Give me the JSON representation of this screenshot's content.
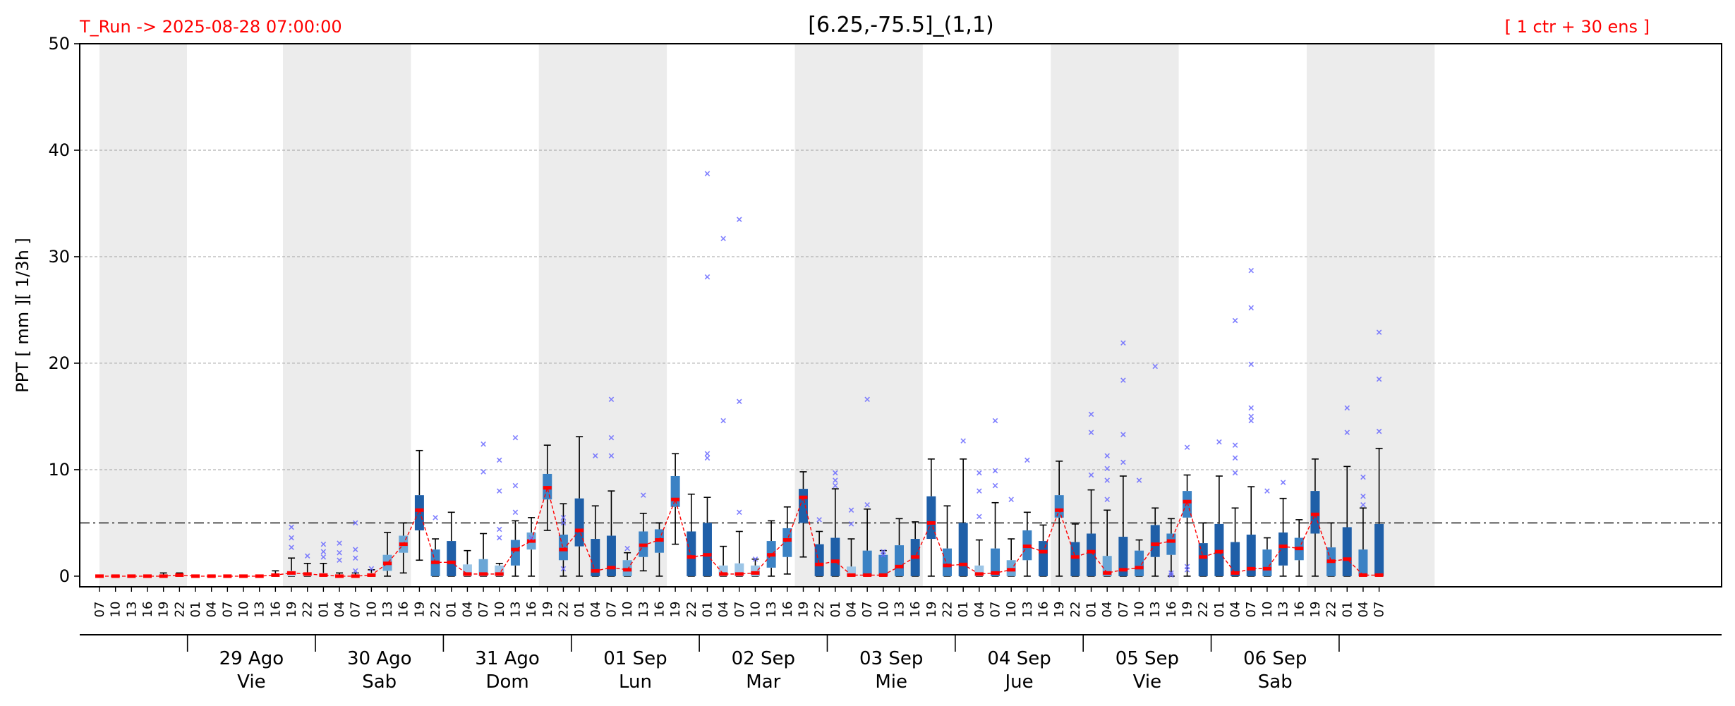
{
  "header": {
    "run_label": "T_Run -> 2025-08-28  07:00:00",
    "title": "[6.25,-75.5]_(1,1)",
    "members_label": "[ 1 ctr + 30 ens ]"
  },
  "colors": {
    "header_red": "#ff0000",
    "night_band": "#ececec",
    "median_red": "#ff0000",
    "outlier_blue": "#6a6aff",
    "whisker": "#000000",
    "threshold_line": "#555555"
  },
  "chart_data": {
    "type": "box",
    "ylabel": "PPT  [ mm ][ 1/3h ]",
    "ylim": [
      -1,
      50
    ],
    "yticks": [
      0,
      10,
      20,
      30,
      40,
      50
    ],
    "threshold": 5,
    "hours": [
      "07",
      "10",
      "13",
      "16",
      "19",
      "22",
      "01",
      "04",
      "07",
      "10",
      "13",
      "16",
      "19",
      "22",
      "01",
      "04",
      "07",
      "10",
      "13",
      "16",
      "19",
      "22",
      "01",
      "04",
      "07",
      "10",
      "13",
      "16",
      "19",
      "22",
      "01",
      "04",
      "07",
      "10",
      "13",
      "16",
      "19",
      "22",
      "01",
      "04",
      "07",
      "10",
      "13",
      "16",
      "19",
      "22",
      "01",
      "04",
      "07",
      "10",
      "13",
      "16",
      "19",
      "22",
      "01",
      "04",
      "07",
      "10",
      "13",
      "16",
      "19",
      "22",
      "01",
      "04",
      "07",
      "10",
      "13",
      "16",
      "19",
      "22",
      "01",
      "04",
      "07",
      "10",
      "13",
      "16",
      "19",
      "22",
      "01",
      "04",
      "07"
    ],
    "days": [
      {
        "date": "29 Ago",
        "weekday": "Vie"
      },
      {
        "date": "30 Ago",
        "weekday": "Sab"
      },
      {
        "date": "31 Ago",
        "weekday": "Dom"
      },
      {
        "date": "01 Sep",
        "weekday": "Lun"
      },
      {
        "date": "02 Sep",
        "weekday": "Mar"
      },
      {
        "date": "03 Sep",
        "weekday": "Mie"
      },
      {
        "date": "04 Sep",
        "weekday": "Jue"
      },
      {
        "date": "05 Sep",
        "weekday": "Vie"
      },
      {
        "date": "06 Sep",
        "weekday": "Sab"
      }
    ],
    "median": [
      0,
      0,
      0,
      0,
      0,
      0.1,
      0,
      0,
      0,
      0,
      0,
      0.1,
      0.3,
      0.2,
      0.1,
      0,
      0,
      0.1,
      1.2,
      3.0,
      6.2,
      1.3,
      1.3,
      0.2,
      0.2,
      0.2,
      2.5,
      3.3,
      8.3,
      2.5,
      4.3,
      0.5,
      0.8,
      0.6,
      2.9,
      3.4,
      7.2,
      1.8,
      2.0,
      0.2,
      0.2,
      0.3,
      2.0,
      3.4,
      7.4,
      1.1,
      1.4,
      0.1,
      0.1,
      0.1,
      0.9,
      1.8,
      5.0,
      1.0,
      1.1,
      0.2,
      0.3,
      0.6,
      2.8,
      2.3,
      6.2,
      1.8,
      2.3,
      0.3,
      0.6,
      0.8,
      3.0,
      3.3,
      7.0,
      1.8,
      2.3,
      0.3,
      0.7,
      0.7,
      2.8,
      2.6,
      5.8,
      1.4,
      1.6,
      0.1,
      0.1
    ],
    "q1": [
      0,
      0,
      0,
      0,
      0,
      0,
      0,
      0,
      0,
      0,
      0,
      0,
      0,
      0,
      0,
      0,
      0,
      0,
      0.5,
      2.2,
      4.3,
      0,
      0,
      0,
      0,
      0,
      1.0,
      2.5,
      7.2,
      1.5,
      2.8,
      0,
      0,
      0,
      1.8,
      2.2,
      6.5,
      0,
      0,
      0,
      0,
      0,
      0.8,
      1.8,
      5.0,
      0,
      0,
      0,
      0,
      0,
      0,
      0,
      3.5,
      0,
      0,
      0,
      0,
      0,
      1.5,
      0,
      5.5,
      0,
      0,
      0,
      0,
      0,
      1.8,
      2.0,
      5.5,
      0,
      0,
      0,
      0,
      0,
      1.0,
      1.5,
      4.0,
      0,
      0,
      0,
      0
    ],
    "q3": [
      0,
      0,
      0,
      0,
      0.1,
      0.1,
      0,
      0,
      0,
      0,
      0,
      0.2,
      0.5,
      0.3,
      0.3,
      0.1,
      0.1,
      0.3,
      2.0,
      3.8,
      7.6,
      2.5,
      3.3,
      1.1,
      1.6,
      1.0,
      3.4,
      4.1,
      9.6,
      3.9,
      7.3,
      3.5,
      3.8,
      1.5,
      4.2,
      4.4,
      9.4,
      4.2,
      5.0,
      1.0,
      1.2,
      1.0,
      3.3,
      4.5,
      8.2,
      3.0,
      3.6,
      0.9,
      2.4,
      2.0,
      2.9,
      3.5,
      7.5,
      2.6,
      5.0,
      1.0,
      2.6,
      1.5,
      4.3,
      3.3,
      7.6,
      3.2,
      4.0,
      1.9,
      3.7,
      2.4,
      4.8,
      4.0,
      8.0,
      3.1,
      4.9,
      3.2,
      3.9,
      2.5,
      4.1,
      3.6,
      8.0,
      2.7,
      4.6,
      2.5,
      4.9
    ],
    "whisker_low": [
      0,
      0,
      0,
      0,
      0,
      0,
      0,
      0,
      0,
      0,
      0,
      0,
      0,
      0,
      0,
      0,
      0,
      0,
      0,
      0.3,
      1.5,
      0,
      0,
      0,
      0,
      0,
      0,
      0,
      4.3,
      0,
      0,
      0,
      0,
      0,
      0.5,
      0,
      3.0,
      0,
      0,
      0,
      0,
      0,
      0,
      0.2,
      1.8,
      0,
      0,
      0,
      0,
      0,
      0,
      0,
      0,
      0,
      0,
      0,
      0,
      0,
      0,
      0,
      0,
      0,
      0,
      0,
      0,
      0,
      0,
      0,
      0,
      0,
      0,
      0,
      0,
      0,
      0,
      0,
      0,
      0,
      0,
      0,
      0
    ],
    "whisker_high": [
      0,
      0,
      0,
      0,
      0.3,
      0.3,
      0,
      0,
      0,
      0,
      0,
      0.5,
      1.7,
      1.2,
      1.2,
      0.3,
      0.3,
      0.6,
      4.1,
      5.0,
      11.8,
      3.5,
      6.0,
      2.4,
      4.0,
      1.2,
      5.2,
      5.5,
      12.3,
      6.8,
      13.1,
      6.6,
      8.0,
      2.2,
      5.9,
      5.0,
      11.5,
      7.7,
      7.4,
      2.8,
      4.2,
      1.6,
      5.2,
      6.5,
      9.8,
      4.2,
      8.2,
      3.5,
      6.3,
      2.4,
      5.4,
      5.1,
      11.0,
      6.6,
      11.0,
      3.4,
      6.9,
      3.5,
      6.0,
      4.8,
      10.8,
      4.9,
      8.1,
      6.2,
      9.4,
      3.4,
      6.4,
      5.4,
      9.5,
      5.0,
      9.4,
      6.4,
      8.4,
      3.6,
      7.3,
      5.3,
      11.0,
      5.0,
      10.3,
      6.4,
      12.0
    ],
    "outliers": [
      [
        12,
        4.6
      ],
      [
        12,
        3.6
      ],
      [
        12,
        2.7
      ],
      [
        13,
        1.9
      ],
      [
        14,
        3.0
      ],
      [
        14,
        2.3
      ],
      [
        14,
        1.8
      ],
      [
        15,
        3.1
      ],
      [
        15,
        2.2
      ],
      [
        15,
        1.5
      ],
      [
        16,
        5.0
      ],
      [
        16,
        2.5
      ],
      [
        16,
        1.7
      ],
      [
        16,
        0.5
      ],
      [
        17,
        0.7
      ],
      [
        21,
        5.5
      ],
      [
        24,
        12.4
      ],
      [
        24,
        9.8
      ],
      [
        25,
        10.9
      ],
      [
        25,
        8.0
      ],
      [
        25,
        4.4
      ],
      [
        25,
        3.6
      ],
      [
        26,
        13.0
      ],
      [
        26,
        8.5
      ],
      [
        26,
        6.0
      ],
      [
        27,
        3.6
      ],
      [
        29,
        5.5
      ],
      [
        29,
        5.0
      ],
      [
        29,
        0.7
      ],
      [
        31,
        11.3
      ],
      [
        32,
        16.6
      ],
      [
        32,
        13.0
      ],
      [
        32,
        11.3
      ],
      [
        33,
        2.6
      ],
      [
        34,
        7.6
      ],
      [
        38,
        37.8
      ],
      [
        38,
        28.1
      ],
      [
        38,
        11.5
      ],
      [
        38,
        11.1
      ],
      [
        39,
        14.6
      ],
      [
        39,
        31.7
      ],
      [
        40,
        33.5
      ],
      [
        40,
        16.4
      ],
      [
        40,
        6.0
      ],
      [
        41,
        1.6
      ],
      [
        45,
        5.3
      ],
      [
        46,
        9.7
      ],
      [
        46,
        9.0
      ],
      [
        46,
        8.5
      ],
      [
        47,
        6.2
      ],
      [
        47,
        4.9
      ],
      [
        48,
        16.6
      ],
      [
        48,
        6.7
      ],
      [
        49,
        2.3
      ],
      [
        49,
        2.0
      ],
      [
        54,
        12.7
      ],
      [
        55,
        9.7
      ],
      [
        55,
        8.0
      ],
      [
        55,
        5.6
      ],
      [
        56,
        14.6
      ],
      [
        56,
        9.9
      ],
      [
        56,
        8.5
      ],
      [
        57,
        7.2
      ],
      [
        58,
        10.9
      ],
      [
        62,
        15.2
      ],
      [
        62,
        13.5
      ],
      [
        62,
        9.5
      ],
      [
        63,
        11.3
      ],
      [
        63,
        10.1
      ],
      [
        63,
        9.0
      ],
      [
        63,
        7.2
      ],
      [
        64,
        21.9
      ],
      [
        64,
        18.4
      ],
      [
        64,
        13.3
      ],
      [
        64,
        10.7
      ],
      [
        65,
        9.0
      ],
      [
        66,
        19.7
      ],
      [
        67,
        0.3
      ],
      [
        67,
        0.1
      ],
      [
        68,
        12.1
      ],
      [
        68,
        0.9
      ],
      [
        68,
        0.6
      ],
      [
        70,
        12.6
      ],
      [
        71,
        24.0
      ],
      [
        71,
        12.3
      ],
      [
        71,
        11.1
      ],
      [
        71,
        9.7
      ],
      [
        72,
        28.7
      ],
      [
        72,
        25.2
      ],
      [
        72,
        19.9
      ],
      [
        72,
        15.8
      ],
      [
        72,
        15.0
      ],
      [
        72,
        14.6
      ],
      [
        73,
        8.0
      ],
      [
        74,
        8.8
      ],
      [
        78,
        15.8
      ],
      [
        78,
        13.5
      ],
      [
        79,
        9.3
      ],
      [
        79,
        7.5
      ],
      [
        79,
        6.7
      ],
      [
        80,
        22.9
      ],
      [
        80,
        18.5
      ],
      [
        80,
        13.6
      ]
    ]
  }
}
